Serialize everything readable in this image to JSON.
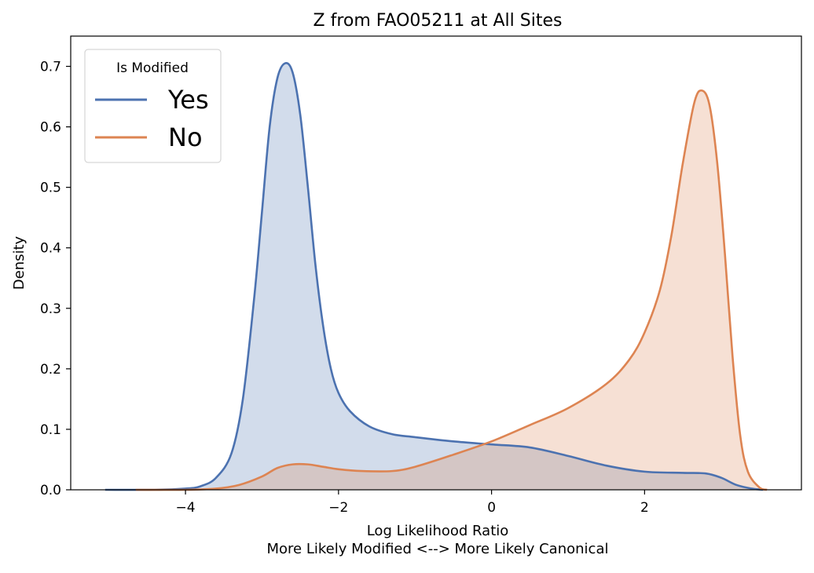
{
  "chart_data": {
    "type": "area",
    "title": "Z from FAO05211 at All Sites",
    "xlabel": "Log Likelihood Ratio",
    "xlabel2": "More Likely Modified <--> More Likely Canonical",
    "ylabel": "Density",
    "xlim": [
      -5.5,
      4.05
    ],
    "ylim": [
      0,
      0.75
    ],
    "xticks": [
      -4,
      -2,
      0,
      2
    ],
    "xtick_labels": [
      "−4",
      "−2",
      "0",
      "2"
    ],
    "yticks": [
      0.0,
      0.1,
      0.2,
      0.3,
      0.4,
      0.5,
      0.6,
      0.7
    ],
    "ytick_labels": [
      "0.0",
      "0.1",
      "0.2",
      "0.3",
      "0.4",
      "0.5",
      "0.6",
      "0.7"
    ],
    "grid": false,
    "legend": {
      "title": "Is Modified",
      "placement": "top-left"
    },
    "series": [
      {
        "name": "Yes",
        "color": "#4c72b0",
        "points": [
          [
            -5.05,
            0.0
          ],
          [
            -4.4,
            0.0
          ],
          [
            -4.0,
            0.002
          ],
          [
            -3.8,
            0.006
          ],
          [
            -3.6,
            0.02
          ],
          [
            -3.4,
            0.06
          ],
          [
            -3.25,
            0.15
          ],
          [
            -3.1,
            0.32
          ],
          [
            -3.0,
            0.46
          ],
          [
            -2.9,
            0.6
          ],
          [
            -2.8,
            0.68
          ],
          [
            -2.7,
            0.705
          ],
          [
            -2.6,
            0.69
          ],
          [
            -2.5,
            0.62
          ],
          [
            -2.4,
            0.5
          ],
          [
            -2.3,
            0.37
          ],
          [
            -2.2,
            0.27
          ],
          [
            -2.1,
            0.2
          ],
          [
            -2.0,
            0.16
          ],
          [
            -1.85,
            0.13
          ],
          [
            -1.6,
            0.105
          ],
          [
            -1.3,
            0.092
          ],
          [
            -1.0,
            0.087
          ],
          [
            -0.5,
            0.08
          ],
          [
            0.0,
            0.075
          ],
          [
            0.5,
            0.07
          ],
          [
            1.0,
            0.056
          ],
          [
            1.5,
            0.04
          ],
          [
            2.0,
            0.03
          ],
          [
            2.5,
            0.028
          ],
          [
            2.8,
            0.027
          ],
          [
            3.0,
            0.02
          ],
          [
            3.2,
            0.008
          ],
          [
            3.4,
            0.002
          ],
          [
            3.55,
            0.0
          ]
        ]
      },
      {
        "name": "No",
        "color": "#dd8452",
        "points": [
          [
            -4.65,
            0.0
          ],
          [
            -4.0,
            0.0
          ],
          [
            -3.6,
            0.002
          ],
          [
            -3.3,
            0.008
          ],
          [
            -3.0,
            0.022
          ],
          [
            -2.8,
            0.036
          ],
          [
            -2.6,
            0.042
          ],
          [
            -2.4,
            0.042
          ],
          [
            -2.2,
            0.038
          ],
          [
            -2.0,
            0.034
          ],
          [
            -1.7,
            0.031
          ],
          [
            -1.3,
            0.031
          ],
          [
            -1.0,
            0.038
          ],
          [
            -0.5,
            0.058
          ],
          [
            0.0,
            0.08
          ],
          [
            0.5,
            0.107
          ],
          [
            1.0,
            0.135
          ],
          [
            1.5,
            0.175
          ],
          [
            1.8,
            0.215
          ],
          [
            2.0,
            0.26
          ],
          [
            2.2,
            0.33
          ],
          [
            2.35,
            0.42
          ],
          [
            2.5,
            0.54
          ],
          [
            2.65,
            0.64
          ],
          [
            2.75,
            0.66
          ],
          [
            2.85,
            0.635
          ],
          [
            2.95,
            0.54
          ],
          [
            3.05,
            0.39
          ],
          [
            3.15,
            0.22
          ],
          [
            3.25,
            0.09
          ],
          [
            3.35,
            0.03
          ],
          [
            3.5,
            0.004
          ],
          [
            3.6,
            0.0
          ]
        ]
      }
    ]
  }
}
